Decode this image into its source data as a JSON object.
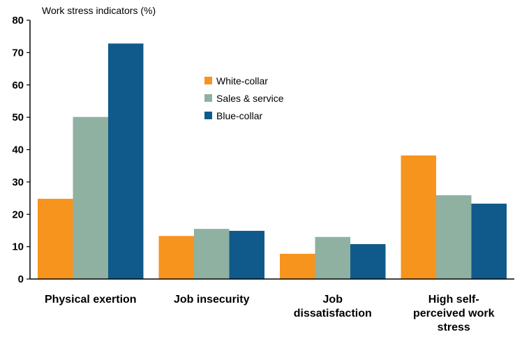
{
  "chart_data": {
    "type": "bar",
    "title": "",
    "ylabel": "Work stress indicators (%)",
    "xlabel": "",
    "ylim": [
      0,
      80
    ],
    "yticks": [
      0,
      10,
      20,
      30,
      40,
      50,
      60,
      70,
      80
    ],
    "categories": [
      "Physical exertion",
      "Job insecurity",
      "Job dissatisfaction",
      "High self-perceived work stress"
    ],
    "category_lines": [
      [
        "Physical exertion"
      ],
      [
        "Job insecurity"
      ],
      [
        "Job",
        "dissatisfaction"
      ],
      [
        "High self-",
        "perceived work",
        "stress"
      ]
    ],
    "series": [
      {
        "name": "White-collar",
        "color": "#f7941d",
        "values": [
          24.8,
          13.3,
          7.8,
          38.2
        ]
      },
      {
        "name": "Sales & service",
        "color": "#8fb1a2",
        "values": [
          50.1,
          15.5,
          13.0,
          25.9
        ]
      },
      {
        "name": "Blue-collar",
        "color": "#0f5a8a",
        "values": [
          72.8,
          14.9,
          10.8,
          23.3
        ]
      }
    ],
    "legend_position": "upper-center",
    "grid": false
  }
}
